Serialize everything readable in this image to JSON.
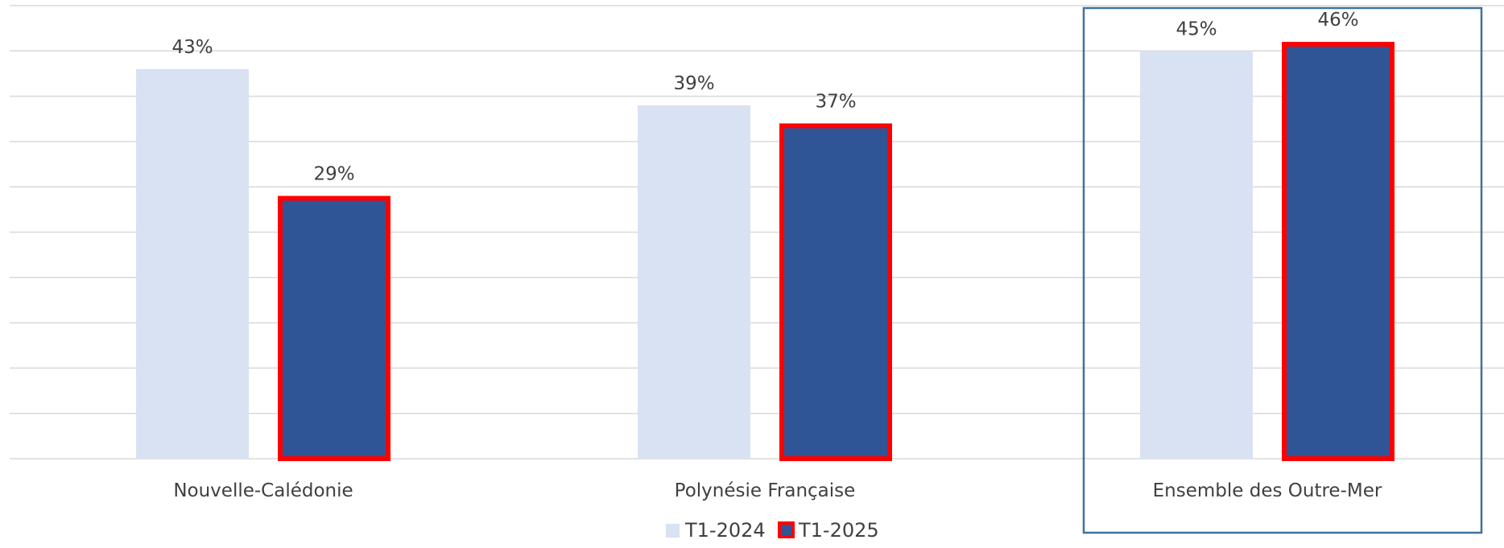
{
  "chart_data": {
    "type": "bar",
    "title": "",
    "xlabel": "",
    "ylabel": "",
    "ylim": [
      0,
      50
    ],
    "grid": true,
    "legend_position": "bottom-center",
    "categories": [
      "Nouvelle-Calédonie",
      "Polynésie Française",
      "Ensemble des Outre-Mer"
    ],
    "series": [
      {
        "name": "T1-2024",
        "values": [
          43,
          39,
          45
        ],
        "labels": [
          "43%",
          "39%",
          "45%"
        ],
        "color": "#d9e2f3",
        "highlight_border": false
      },
      {
        "name": "T1-2025",
        "values": [
          29,
          37,
          46
        ],
        "labels": [
          "29%",
          "37%",
          "46%"
        ],
        "color": "#2f5597",
        "highlight_border": true,
        "border_color": "#ff0000"
      }
    ],
    "highlighted_category": "Ensemble des Outre-Mer",
    "highlight_box_color": "#41719c",
    "gridline_color": "#d9d9d9",
    "text_color": "#404040"
  }
}
